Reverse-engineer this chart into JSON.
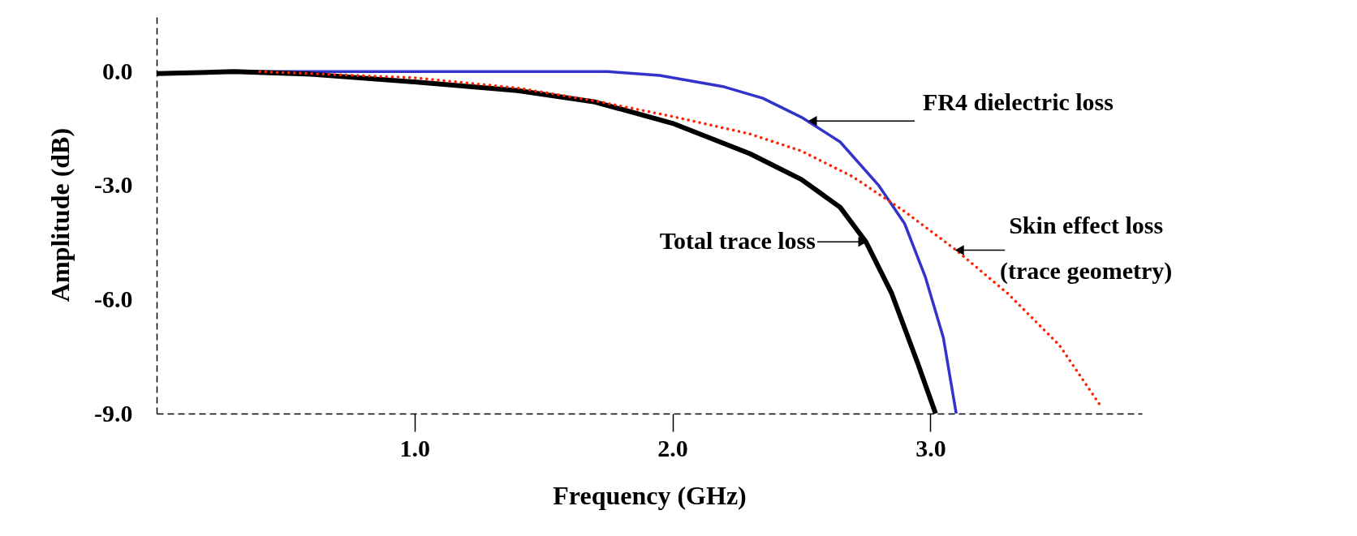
{
  "chart_data": {
    "type": "line",
    "xlabel": "Frequency (GHz)",
    "ylabel": "Amplitude (dB)",
    "xlim": [
      0,
      3.82
    ],
    "ylim": [
      -9,
      1.48
    ],
    "xticks": [
      {
        "value": 1,
        "label": "1.0"
      },
      {
        "value": 2,
        "label": "2.0"
      },
      {
        "value": 3,
        "label": "3.0"
      }
    ],
    "yticks": [
      {
        "value": 0,
        "label": "0.0"
      },
      {
        "value": -3,
        "label": "-3.0"
      },
      {
        "value": -6,
        "label": "-6.0"
      },
      {
        "value": -9,
        "label": "-9.0"
      }
    ],
    "grid": false,
    "marker": "none",
    "series": [
      {
        "color": "#3333cc",
        "line_style": "solid",
        "x": [
          0,
          0.3,
          1.0,
          1.75,
          1.95,
          2.2,
          2.35,
          2.5,
          2.65,
          2.8,
          2.9,
          2.98,
          3.05,
          3.1
        ],
        "values": [
          -0.05,
          0.0,
          0.0,
          0.0,
          -0.1,
          -0.4,
          -0.7,
          -1.2,
          -1.85,
          -3.0,
          -4.0,
          -5.4,
          -7.0,
          -9.0
        ]
      },
      {
        "color": "#ff2200",
        "line_style": "dotted",
        "x": [
          0.4,
          1.0,
          1.4,
          1.7,
          2.0,
          2.3,
          2.5,
          2.7,
          2.9,
          3.1,
          3.3,
          3.5,
          3.66
        ],
        "values": [
          0.0,
          -0.16,
          -0.43,
          -0.77,
          -1.18,
          -1.64,
          -2.09,
          -2.77,
          -3.68,
          -4.7,
          -5.84,
          -7.2,
          -8.8
        ]
      },
      {
        "color": "#000000",
        "line_style": "solid",
        "x": [
          0,
          0.3,
          0.6,
          1.0,
          1.4,
          1.7,
          2.0,
          2.3,
          2.5,
          2.65,
          2.75,
          2.85,
          2.95,
          3.02
        ],
        "values": [
          -0.05,
          0.0,
          -0.07,
          -0.27,
          -0.5,
          -0.8,
          -1.36,
          -2.16,
          -2.84,
          -3.57,
          -4.48,
          -5.84,
          -7.66,
          -9.0
        ]
      }
    ],
    "annotations": [
      {
        "text": "FR4 dielectric loss",
        "x": 2.53,
        "y": -1.3
      },
      {
        "text": "Skin effect loss\n(trace geometry)",
        "x": 3.1,
        "y": -4.7
      },
      {
        "text": "Total trace loss",
        "x": 2.75,
        "y": -4.48
      }
    ]
  }
}
